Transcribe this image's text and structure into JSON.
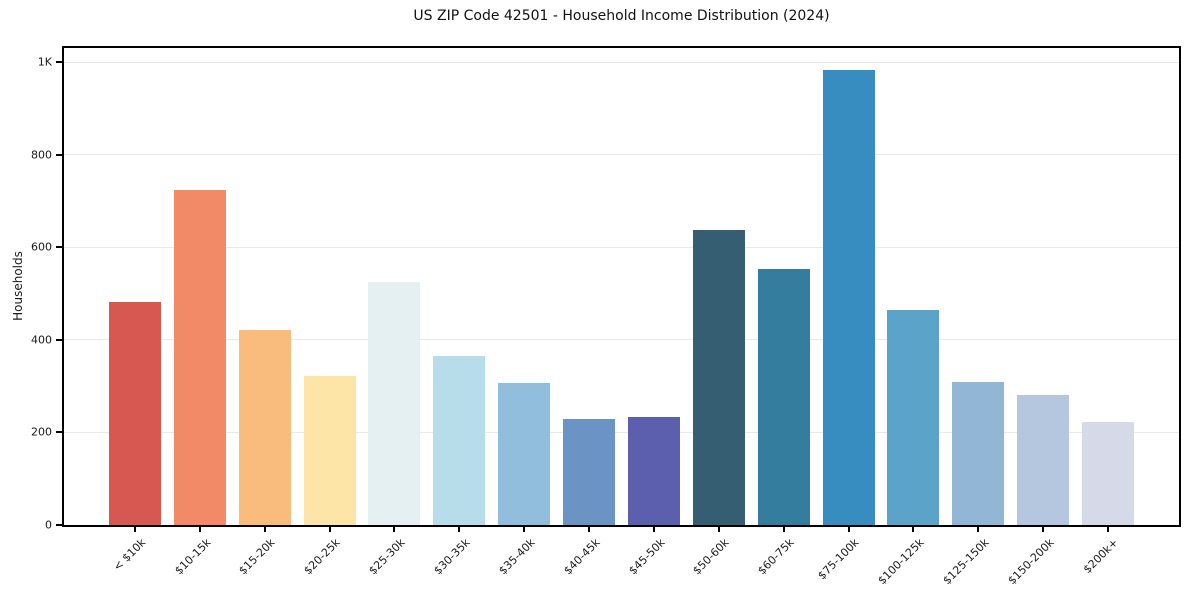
{
  "chart": {
    "title": "US ZIP Code 42501 - Household Income Distribution (2024)",
    "ylabel": "Households"
  },
  "chart_data": {
    "type": "bar",
    "title": "US ZIP Code 42501 - Household Income Distribution (2024)",
    "xlabel": "",
    "ylabel": "Households",
    "categories": [
      "< $10k",
      "$10-15k",
      "$15-20k",
      "$20-25k",
      "$25-30k",
      "$30-35k",
      "$35-40k",
      "$40-45k",
      "$45-50k",
      "$50-60k",
      "$60-75k",
      "$75-100k",
      "$100-125k",
      "$125-150k",
      "$150-200k",
      "$200k+"
    ],
    "values": [
      482,
      725,
      421,
      322,
      525,
      365,
      308,
      229,
      234,
      638,
      554,
      984,
      465,
      309,
      281,
      223
    ],
    "bar_colors": [
      "#d65850",
      "#f28a68",
      "#fabc7c",
      "#fce5a6",
      "#e4f0f2",
      "#b7dcea",
      "#92bedd",
      "#6b93c4",
      "#5b5fae",
      "#355e73",
      "#347d9e",
      "#388dc0",
      "#5ba3c8",
      "#92b7d6",
      "#b5c7de",
      "#d6d9e7"
    ],
    "ylim": [
      0,
      1031
    ],
    "yticks": [
      {
        "value": 0,
        "label": "0"
      },
      {
        "value": 200,
        "label": "200"
      },
      {
        "value": 400,
        "label": "400"
      },
      {
        "value": 600,
        "label": "600"
      },
      {
        "value": 800,
        "label": "800"
      },
      {
        "value": 1000,
        "label": "1K"
      }
    ],
    "gridline_values": [
      200,
      400,
      600,
      800,
      1000
    ],
    "grid": "horizontal",
    "legend": "none",
    "background_color": "#ffffff",
    "text_color": "#1a1a1a",
    "grid_color": "#e9e9e9",
    "spine_color": "#000000"
  }
}
